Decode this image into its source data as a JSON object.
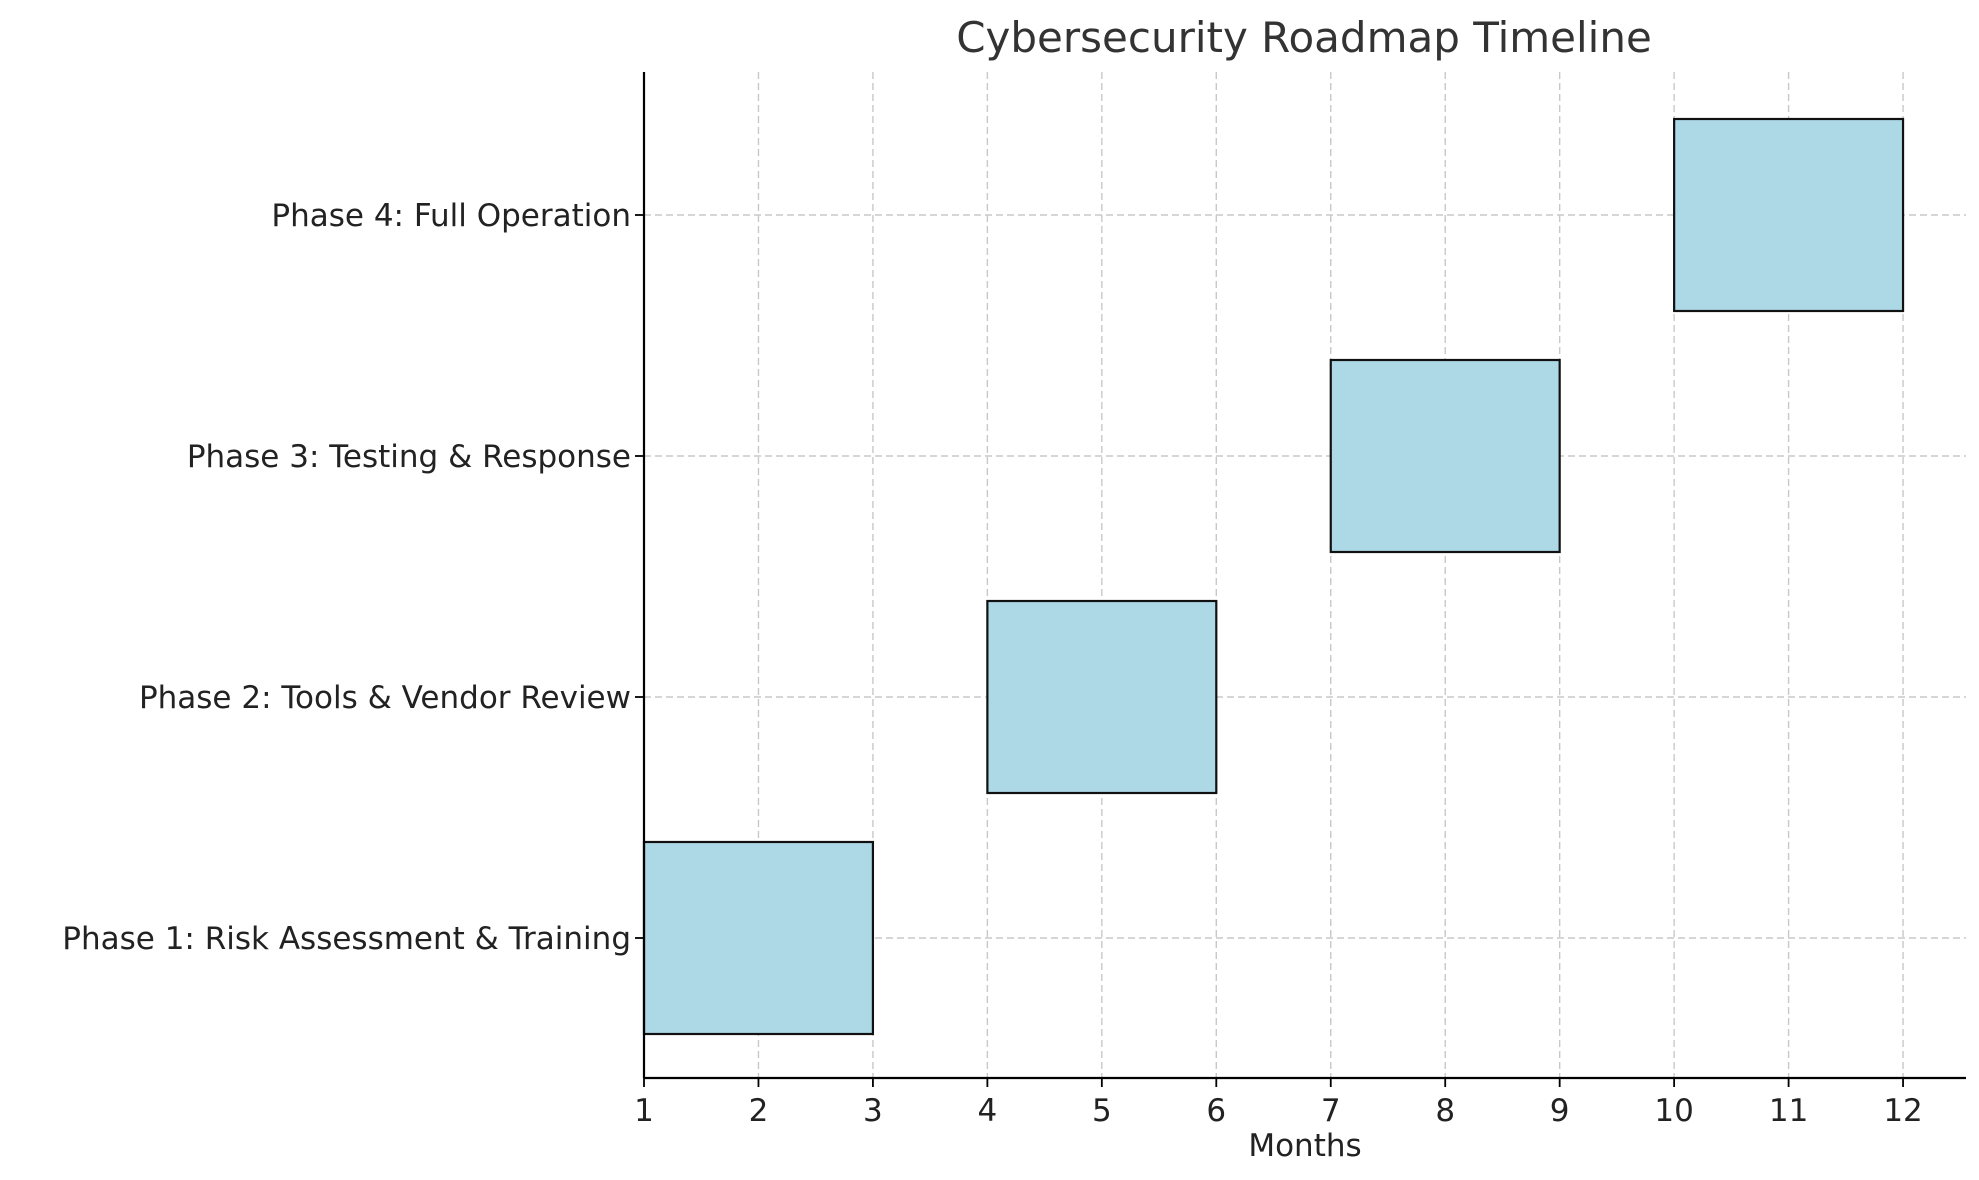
{
  "chart_data": {
    "type": "bar",
    "orientation": "horizontal-gantt",
    "title": "Cybersecurity Roadmap Timeline",
    "xlabel": "Months",
    "ylabel": "",
    "xlim": [
      1,
      12.55
    ],
    "xticks": [
      1,
      2,
      3,
      4,
      5,
      6,
      7,
      8,
      9,
      10,
      11,
      12
    ],
    "grid": true,
    "bar_color": "#add8e6",
    "edge_color": "#111111",
    "tasks": [
      {
        "name": "Phase 1: Risk Assessment & Training",
        "start": 1,
        "end": 3
      },
      {
        "name": "Phase 2: Tools & Vendor Review",
        "start": 4,
        "end": 6
      },
      {
        "name": "Phase 3: Testing & Response",
        "start": 7,
        "end": 9
      },
      {
        "name": "Phase 4: Full Operation",
        "start": 10,
        "end": 12
      }
    ]
  }
}
